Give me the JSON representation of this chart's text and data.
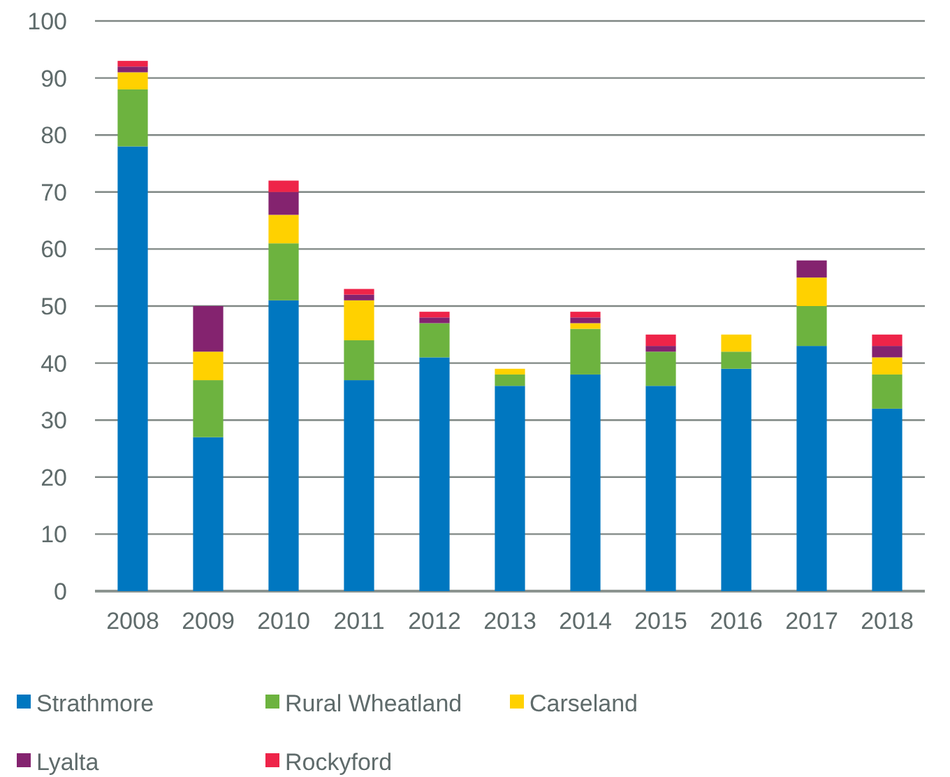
{
  "chart_data": {
    "type": "bar",
    "stacked": true,
    "categories": [
      "2008",
      "2009",
      "2010",
      "2011",
      "2012",
      "2013",
      "2014",
      "2015",
      "2016",
      "2017",
      "2018"
    ],
    "series": [
      {
        "name": "Strathmore",
        "color": "#0077c0",
        "values": [
          78,
          27,
          51,
          37,
          41,
          36,
          38,
          36,
          39,
          43,
          32
        ]
      },
      {
        "name": "Rural Wheatland",
        "color": "#6db33f",
        "values": [
          10,
          10,
          10,
          7,
          6,
          2,
          8,
          6,
          3,
          7,
          6
        ]
      },
      {
        "name": "Carseland",
        "color": "#ffd100",
        "values": [
          3,
          5,
          5,
          7,
          0,
          1,
          1,
          0,
          3,
          5,
          3
        ]
      },
      {
        "name": "Lyalta",
        "color": "#84236f",
        "values": [
          1,
          8,
          4,
          1,
          1,
          0,
          1,
          1,
          0,
          3,
          2
        ]
      },
      {
        "name": "Rockyford",
        "color": "#ee2449",
        "values": [
          1,
          0,
          2,
          1,
          1,
          0,
          1,
          2,
          0,
          0,
          2
        ]
      }
    ],
    "ylim": [
      0,
      100
    ],
    "yticks": [
      0,
      10,
      20,
      30,
      40,
      50,
      60,
      70,
      80,
      90,
      100
    ],
    "grid": "y",
    "legend": "bottom"
  }
}
